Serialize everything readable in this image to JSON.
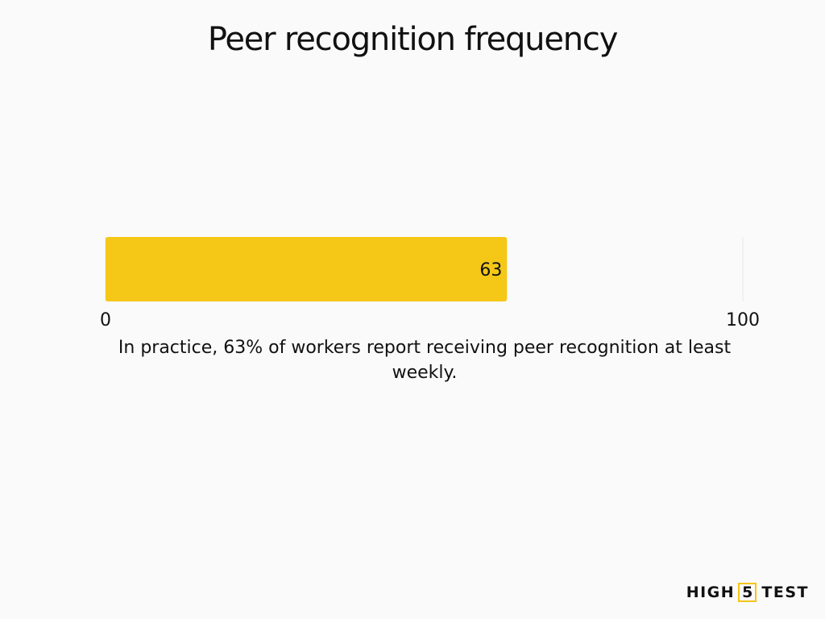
{
  "chart_data": {
    "type": "bar",
    "orientation": "horizontal",
    "title": "Peer recognition frequency",
    "categories": [
      ""
    ],
    "values": [
      63
    ],
    "data_labels": [
      "63"
    ],
    "xlim": [
      0,
      100
    ],
    "x_ticks": [
      "0",
      "100"
    ],
    "xlabel": "",
    "ylabel": "",
    "grid": false,
    "legend": "none",
    "bar_color": "#f5c818"
  },
  "caption": "In practice, 63% of workers report receiving peer recognition at least weekly.",
  "logo": {
    "left": "HIGH",
    "number": "5",
    "right": "TEST",
    "accent_color": "#f5c518"
  }
}
